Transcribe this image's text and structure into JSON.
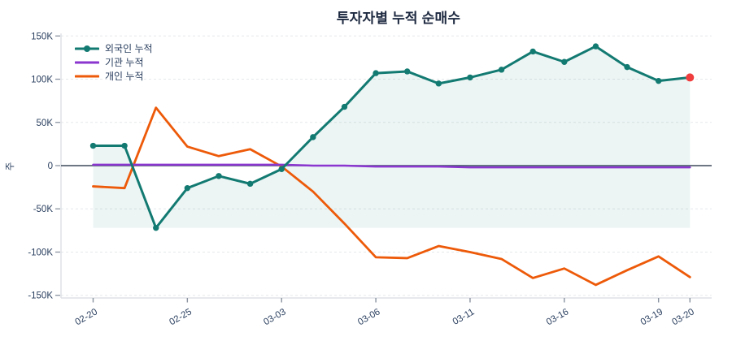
{
  "chart_data": {
    "type": "line",
    "title": "투자자별 누적 순매수",
    "ylabel": "주",
    "unit": "K (thousands of shares)",
    "ylim": [
      -150,
      150
    ],
    "grid": "horizontal-dashed",
    "legend_position": "top-left-inside",
    "n_points": 20,
    "x_ticks": [
      {
        "index": 0,
        "label": "02-20"
      },
      {
        "index": 3,
        "label": "02-25"
      },
      {
        "index": 6,
        "label": "03-03"
      },
      {
        "index": 9,
        "label": "03-06"
      },
      {
        "index": 12,
        "label": "03-11"
      },
      {
        "index": 15,
        "label": "03-16"
      },
      {
        "index": 18,
        "label": "03-19"
      },
      {
        "index": 19,
        "label": "03-20"
      }
    ],
    "y_ticks": [
      {
        "value": 150,
        "label": "150K"
      },
      {
        "value": 100,
        "label": "100K"
      },
      {
        "value": 50,
        "label": "50K"
      },
      {
        "value": 0,
        "label": "0"
      },
      {
        "value": -50,
        "label": "-50K"
      },
      {
        "value": -100,
        "label": "-100K"
      },
      {
        "value": -150,
        "label": "-150K"
      }
    ],
    "series": [
      {
        "name": "외국인 누적",
        "color": "#137a72",
        "marker": "circle",
        "values": [
          23,
          23,
          -72,
          -26,
          -12,
          -21,
          -4,
          33,
          68,
          107,
          109,
          95,
          102,
          111,
          132,
          120,
          138,
          114,
          98,
          102
        ]
      },
      {
        "name": "기관 누적",
        "color": "#8a36cf",
        "marker": "none",
        "values": [
          1,
          1,
          1,
          1,
          1,
          1,
          1,
          0,
          0,
          -1,
          -1,
          -1,
          -2,
          -2,
          -2,
          -2,
          -2,
          -2,
          -2,
          -2
        ]
      },
      {
        "name": "개인 누적",
        "color": "#ed5a09",
        "marker": "none",
        "values": [
          -24,
          -26,
          67,
          22,
          11,
          19,
          -1,
          -30,
          -67,
          -106,
          -107,
          -93,
          -100,
          -108,
          -130,
          -119,
          -138,
          -121,
          -105,
          -129
        ]
      }
    ],
    "area_fill": {
      "series": "외국인 누적",
      "baseline": "series-min",
      "color": "rgba(19,122,114,0.08)"
    },
    "end_marker": {
      "series": "외국인 누적",
      "color": "#f03e3e"
    },
    "style": {
      "tick_text": "#2a3f5f",
      "grid": "#e5e7ea",
      "zero_line": "#3d4a5c",
      "axis_line": "#dde1e6",
      "tick_mark": "#8a93a0",
      "background": "#ffffff"
    }
  }
}
